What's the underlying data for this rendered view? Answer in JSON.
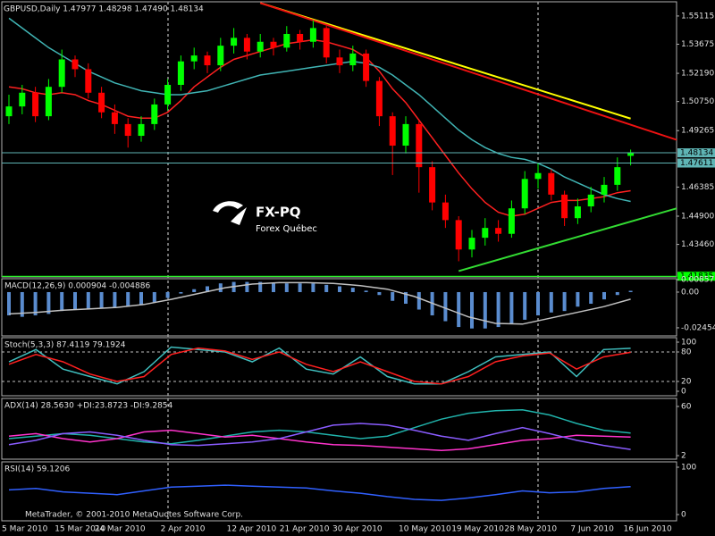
{
  "chart_data": [
    {
      "type": "candlestick",
      "title": "GBPUSD,Daily  1.47977 1.48298 1.47490 1.48134",
      "categories": [
        "5 Mar 2010",
        null,
        null,
        null,
        "15 Mar 2010",
        null,
        null,
        "24 Mar 2010",
        null,
        null,
        null,
        null,
        "2 Apr 2010",
        null,
        null,
        null,
        null,
        "12 Apr 2010",
        null,
        null,
        null,
        "21 Apr 2010",
        null,
        null,
        null,
        "30 Apr 2010",
        null,
        null,
        null,
        null,
        "10 May 2010",
        null,
        null,
        null,
        "19 May 2010",
        null,
        null,
        null,
        "28 May 2010",
        null,
        null,
        null,
        null,
        "7 Jun 2010",
        null,
        null,
        null,
        "16 Jun 2010"
      ],
      "candles": [
        [
          1.5,
          1.511,
          1.496,
          1.505
        ],
        [
          1.505,
          1.516,
          1.501,
          1.512
        ],
        [
          1.512,
          1.515,
          1.497,
          1.5
        ],
        [
          1.5,
          1.519,
          1.498,
          1.515
        ],
        [
          1.515,
          1.534,
          1.512,
          1.529
        ],
        [
          1.529,
          1.531,
          1.52,
          1.524
        ],
        [
          1.524,
          1.527,
          1.509,
          1.512
        ],
        [
          1.512,
          1.515,
          1.499,
          1.502
        ],
        [
          1.502,
          1.506,
          1.491,
          1.496
        ],
        [
          1.496,
          1.499,
          1.484,
          1.49
        ],
        [
          1.49,
          1.5,
          1.487,
          1.496
        ],
        [
          1.496,
          1.509,
          1.493,
          1.506
        ],
        [
          1.506,
          1.519,
          1.503,
          1.516
        ],
        [
          1.516,
          1.531,
          1.513,
          1.528
        ],
        [
          1.528,
          1.535,
          1.524,
          1.531
        ],
        [
          1.531,
          1.533,
          1.522,
          1.526
        ],
        [
          1.526,
          1.54,
          1.523,
          1.536
        ],
        [
          1.536,
          1.545,
          1.532,
          1.54
        ],
        [
          1.54,
          1.542,
          1.529,
          1.533
        ],
        [
          1.533,
          1.542,
          1.53,
          1.538
        ],
        [
          1.538,
          1.54,
          1.531,
          1.535
        ],
        [
          1.535,
          1.546,
          1.533,
          1.542
        ],
        [
          1.542,
          1.544,
          1.534,
          1.538
        ],
        [
          1.538,
          1.549,
          1.535,
          1.545
        ],
        [
          1.545,
          1.546,
          1.527,
          1.53
        ],
        [
          1.53,
          1.534,
          1.522,
          1.526
        ],
        [
          1.526,
          1.536,
          1.523,
          1.532
        ],
        [
          1.532,
          1.534,
          1.515,
          1.518
        ],
        [
          1.518,
          1.52,
          1.495,
          1.5
        ],
        [
          1.5,
          1.502,
          1.47,
          1.485
        ],
        [
          1.485,
          1.5,
          1.481,
          1.496
        ],
        [
          1.496,
          1.498,
          1.461,
          1.474
        ],
        [
          1.474,
          1.477,
          1.452,
          1.456
        ],
        [
          1.456,
          1.46,
          1.443,
          1.447
        ],
        [
          1.447,
          1.449,
          1.426,
          1.432
        ],
        [
          1.432,
          1.442,
          1.428,
          1.438
        ],
        [
          1.438,
          1.448,
          1.434,
          1.443
        ],
        [
          1.443,
          1.447,
          1.436,
          1.44
        ],
        [
          1.44,
          1.457,
          1.438,
          1.453
        ],
        [
          1.453,
          1.472,
          1.45,
          1.468
        ],
        [
          1.468,
          1.476,
          1.463,
          1.471
        ],
        [
          1.471,
          1.473,
          1.457,
          1.46
        ],
        [
          1.46,
          1.462,
          1.444,
          1.448
        ],
        [
          1.448,
          1.458,
          1.445,
          1.454
        ],
        [
          1.454,
          1.464,
          1.451,
          1.46
        ],
        [
          1.46,
          1.469,
          1.456,
          1.465
        ],
        [
          1.465,
          1.479,
          1.462,
          1.474
        ],
        [
          1.47977,
          1.48298,
          1.4749,
          1.48134
        ]
      ],
      "up_color": "#00ff00",
      "down_color": "#ff0000",
      "overlays": [
        {
          "color": "#ff2020",
          "values": [
            1.515,
            1.514,
            1.512,
            1.511,
            1.512,
            1.511,
            1.508,
            1.506,
            1.503,
            1.5,
            1.499,
            1.499,
            1.502,
            1.508,
            1.515,
            1.52,
            1.525,
            1.529,
            1.531,
            1.533,
            1.535,
            1.537,
            1.538,
            1.539,
            1.538,
            1.536,
            1.534,
            1.53,
            1.523,
            1.514,
            1.507,
            1.498,
            1.489,
            1.48,
            1.471,
            1.463,
            1.456,
            1.451,
            1.449,
            1.45,
            1.453,
            1.456,
            1.457,
            1.457,
            1.458,
            1.459,
            1.461,
            1.462
          ]
        },
        {
          "color": "#40b4b4",
          "values": [
            1.55,
            1.545,
            1.54,
            1.535,
            1.531,
            1.527,
            1.523,
            1.52,
            1.517,
            1.515,
            1.513,
            1.512,
            1.511,
            1.511,
            1.512,
            1.513,
            1.515,
            1.517,
            1.519,
            1.521,
            1.522,
            1.523,
            1.524,
            1.525,
            1.526,
            1.527,
            1.528,
            1.527,
            1.525,
            1.521,
            1.516,
            1.511,
            1.505,
            1.499,
            1.493,
            1.488,
            1.484,
            1.481,
            1.479,
            1.478,
            1.476,
            1.473,
            1.469,
            1.466,
            1.463,
            1.46,
            1.458,
            1.4565
          ]
        }
      ],
      "trendlines": [
        {
          "color": "#ffff00",
          "x": [
            19,
            47
          ],
          "values": [
            1.5578,
            1.4988
          ]
        },
        {
          "color": "#ee1111",
          "x": [
            19,
            51
          ],
          "values": [
            1.5578,
            1.4868
          ]
        },
        {
          "color": "#33dd33",
          "x": [
            34,
            51
          ],
          "values": [
            1.421,
            1.454
          ]
        }
      ],
      "levels": [
        {
          "value": 1.48134,
          "color": "#5fb5b5"
        },
        {
          "value": 1.47611,
          "color": "#5fb5b5"
        },
        {
          "value": 1.41835,
          "color": "#00ff00"
        }
      ],
      "ylim": [
        1.418,
        1.5584
      ],
      "yticks": [
        1.55115,
        1.53675,
        {
          "value": 1.5219,
          "label": "1.52190"
        },
        {
          "value": 1.5075,
          "label": "1.50750"
        },
        1.49265,
        1.46385,
        {
          "value": 1.449,
          "label": "1.44900"
        },
        {
          "value": 1.4346,
          "label": "1.43460"
        }
      ],
      "logo": {
        "title": "FX-PQ",
        "subtitle": "Forex Québec"
      }
    },
    {
      "type": "macd",
      "title": "MACD(12,26,9) 0.000904 -0.004886",
      "histogram": {
        "color": "#5a8ccf",
        "values": [
          -0.016,
          -0.017,
          -0.016,
          -0.015,
          -0.013,
          -0.012,
          -0.012,
          -0.011,
          -0.011,
          -0.01,
          -0.009,
          -0.007,
          -0.004,
          -0.001,
          0.002,
          0.004,
          0.006,
          0.007,
          0.007,
          0.007,
          0.006,
          0.006,
          0.006,
          0.006,
          0.005,
          0.004,
          0.003,
          0.001,
          -0.002,
          -0.006,
          -0.008,
          -0.012,
          -0.016,
          -0.02,
          -0.024,
          -0.025,
          -0.025,
          -0.024,
          -0.022,
          -0.019,
          -0.016,
          -0.014,
          -0.013,
          -0.01,
          -0.008,
          -0.005,
          -0.002,
          0.000904
        ]
      },
      "series": [
        {
          "color": "#c0c0c0",
          "values": [
            -0.015,
            -0.014,
            -0.0125,
            -0.0115,
            -0.0105,
            -0.0085,
            -0.005,
            -0.001,
            0.003,
            0.0055,
            0.0065,
            0.0065,
            0.006,
            0.0045,
            0.002,
            -0.003,
            -0.01,
            -0.017,
            -0.0215,
            -0.022,
            -0.018,
            -0.014,
            -0.01,
            -0.004886
          ]
        }
      ],
      "ylim": [
        -0.0301,
        0.0092
      ],
      "yticks": [
        0.008573,
        {
          "value": 0,
          "label": "0.00"
        },
        -0.02454
      ]
    },
    {
      "type": "line",
      "title": "Stoch(5,3,3) 87.4119 79.1924",
      "series": [
        {
          "color": "#40c0c0",
          "values": [
            60,
            85,
            45,
            30,
            15,
            40,
            90,
            85,
            80,
            60,
            88,
            45,
            35,
            70,
            30,
            15,
            15,
            40,
            70,
            75,
            80,
            30,
            85,
            87.4119
          ]
        },
        {
          "color": "#ff2020",
          "values": [
            55,
            75,
            60,
            35,
            20,
            30,
            75,
            88,
            82,
            65,
            80,
            55,
            40,
            60,
            40,
            20,
            15,
            30,
            60,
            72,
            78,
            45,
            70,
            79.1924
          ]
        }
      ],
      "levels": [
        80,
        20
      ],
      "ylim": [
        -9.1,
        109.1
      ],
      "yticks": [
        100,
        80,
        20,
        0
      ]
    },
    {
      "type": "line",
      "title": "ADX(14) 28.5630 +DI:23.8723 -DI:9.2854",
      "series": [
        {
          "color": "#20b2aa",
          "values": [
            22,
            25,
            28,
            26,
            22,
            18,
            16,
            20,
            25,
            30,
            32,
            30,
            26,
            22,
            25,
            35,
            45,
            52,
            55,
            56,
            50,
            40,
            32,
            28.563
          ]
        },
        {
          "color": "#ff33cc",
          "values": [
            25,
            28,
            22,
            18,
            22,
            30,
            32,
            28,
            24,
            26,
            22,
            18,
            15,
            14,
            12,
            10,
            8,
            10,
            15,
            20,
            22,
            26,
            25,
            23.8723
          ]
        },
        {
          "color": "#8a5cff",
          "values": [
            15,
            20,
            28,
            30,
            26,
            20,
            15,
            14,
            16,
            18,
            22,
            30,
            38,
            40,
            38,
            32,
            25,
            20,
            28,
            35,
            28,
            20,
            14,
            9.2854
          ]
        }
      ],
      "ylim": [
        -2.2,
        69.5
      ],
      "yticks": [
        60,
        2
      ]
    },
    {
      "type": "line",
      "title": "RSI(14) 59.1206",
      "series": [
        {
          "color": "#3060ff",
          "values": [
            52,
            55,
            48,
            45,
            42,
            50,
            58,
            60,
            62,
            60,
            58,
            56,
            50,
            45,
            38,
            32,
            30,
            35,
            42,
            50,
            46,
            48,
            55,
            59.1206
          ]
        }
      ],
      "footer": "MetaTrader, © 2001-2010 MetaQuotes Software Corp.",
      "ylim": [
        -13.2,
        111.3
      ],
      "yticks": [
        100,
        0
      ]
    }
  ]
}
